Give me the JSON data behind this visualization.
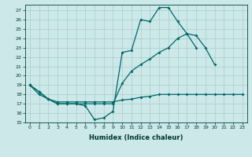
{
  "xlabel": "Humidex (Indice chaleur)",
  "background_color": "#cce8e8",
  "grid_color": "#aacccc",
  "line_color": "#006868",
  "xlim": [
    -0.5,
    23.5
  ],
  "ylim": [
    15,
    27.6
  ],
  "yticks": [
    15,
    16,
    17,
    18,
    19,
    20,
    21,
    22,
    23,
    24,
    25,
    26,
    27
  ],
  "xticks": [
    0,
    1,
    2,
    3,
    4,
    5,
    6,
    7,
    8,
    9,
    10,
    11,
    12,
    13,
    14,
    15,
    16,
    17,
    18,
    19,
    20,
    21,
    22,
    23
  ],
  "line1_y": [
    19.0,
    18.3,
    17.5,
    17.0,
    17.0,
    17.0,
    16.8,
    15.3,
    15.5,
    16.2,
    22.5,
    22.7,
    26.0,
    25.8,
    27.3,
    27.3,
    25.8,
    24.5,
    24.3,
    23.0,
    21.2,
    null,
    null,
    null
  ],
  "line2_y": [
    19.0,
    18.3,
    17.5,
    17.0,
    17.0,
    17.0,
    17.0,
    17.0,
    17.0,
    17.0,
    19.2,
    20.5,
    21.2,
    21.8,
    22.5,
    23.0,
    24.0,
    24.5,
    23.0,
    null,
    null,
    null,
    null,
    null
  ],
  "line3_y": [
    19.0,
    18.0,
    17.5,
    17.2,
    17.2,
    17.2,
    17.2,
    17.2,
    17.2,
    17.2,
    17.4,
    17.5,
    17.7,
    17.8,
    18.0,
    18.0,
    18.0,
    18.0,
    18.0,
    18.0,
    18.0,
    18.0,
    18.0,
    18.0
  ]
}
